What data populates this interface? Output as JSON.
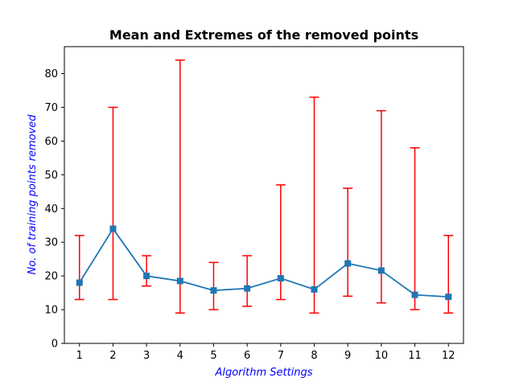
{
  "chart_data": {
    "type": "line",
    "title": "Mean and Extremes of the removed points",
    "xlabel": "Algorithm Settings",
    "ylabel": "No. of training points removed",
    "x": [
      1,
      2,
      3,
      4,
      5,
      6,
      7,
      8,
      9,
      10,
      11,
      12
    ],
    "xlim": [
      0.55,
      12.45
    ],
    "ylim": [
      0,
      88
    ],
    "yticks": [
      0,
      10,
      20,
      30,
      40,
      50,
      60,
      70,
      80
    ],
    "xticks": [
      1,
      2,
      3,
      4,
      5,
      6,
      7,
      8,
      9,
      10,
      11,
      12
    ],
    "grid": false,
    "series": [
      {
        "mean": [
          18,
          34,
          20,
          18.5,
          15.7,
          16.3,
          19.3,
          16,
          23.7,
          21.6,
          14.4,
          13.8
        ],
        "min": [
          13,
          13,
          17,
          9,
          10,
          11,
          13,
          9,
          14,
          12,
          10,
          9
        ],
        "max": [
          32,
          70,
          26,
          84,
          24,
          26,
          47,
          73,
          46,
          69,
          58,
          32
        ]
      }
    ],
    "colors": {
      "line": "#1f77b4",
      "errorbar": "#ff0000",
      "xlabel": "#0000ff",
      "ylabel": "#0000ff"
    }
  }
}
